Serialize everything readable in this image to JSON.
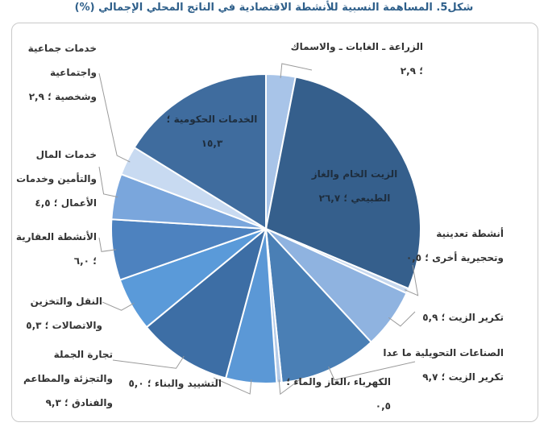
{
  "chart_data": {
    "type": "pie",
    "title": "شكل5. المساهمة النسبية للأنشطة الاقتصادية في الناتج المحلي الإجمالي (%)",
    "slices": [
      {
        "label": "الزراعة ـ الغابات ـ والاسماك",
        "value_text": "٢,٩",
        "value": 2.9,
        "color": "#a8c4e8"
      },
      {
        "label": "الزيت الخام والغاز الطبيعي",
        "value_text": "٢٦,٧",
        "value": 26.7,
        "color": "#355f8c"
      },
      {
        "label": "أنشطة تعدينية وتحجيرية أخرى",
        "value_text": "٠,٥",
        "value": 0.5,
        "color": "#c7d8ee"
      },
      {
        "label": "تكرير الزيت",
        "value_text": "٥,٩",
        "value": 5.9,
        "color": "#8fb3e0"
      },
      {
        "label": "الصناعات التحويلية ما عدا تكرير الزيت",
        "value_text": "٩,٧",
        "value": 9.7,
        "color": "#4a7fb5"
      },
      {
        "label": "الكهرباء ،الغاز والماء",
        "value_text": "٠,٥",
        "value": 0.5,
        "color": "#b4cbe8"
      },
      {
        "label": "التشييد والبناء",
        "value_text": "٥,٠",
        "value": 5.0,
        "color": "#5b98d6"
      },
      {
        "label": "تجارة الجملة والتجزئة والمطاعم والفنادق",
        "value_text": "٩,٣",
        "value": 9.3,
        "color": "#3d6ea5"
      },
      {
        "label": "النقل والتخزين والاتصالات",
        "value_text": "٥,٣",
        "value": 5.3,
        "color": "#5a9ad9"
      },
      {
        "label": "الأنشطة العقارية",
        "value_text": "٦,٠",
        "value": 6.0,
        "color": "#4d82bf"
      },
      {
        "label": "خدمات المال والتأمين وخدمات الأعمال",
        "value_text": "٤,٥",
        "value": 4.5,
        "color": "#7aa6dc"
      },
      {
        "label": "خدمات جماعية واجتماعية وشخصية",
        "value_text": "٢,٩",
        "value": 2.9,
        "color": "#c8daf1"
      },
      {
        "label": "الخدمات الحكومية",
        "value_text": "١٥,٣",
        "value": 15.3,
        "color": "#3f6c9e"
      }
    ]
  }
}
